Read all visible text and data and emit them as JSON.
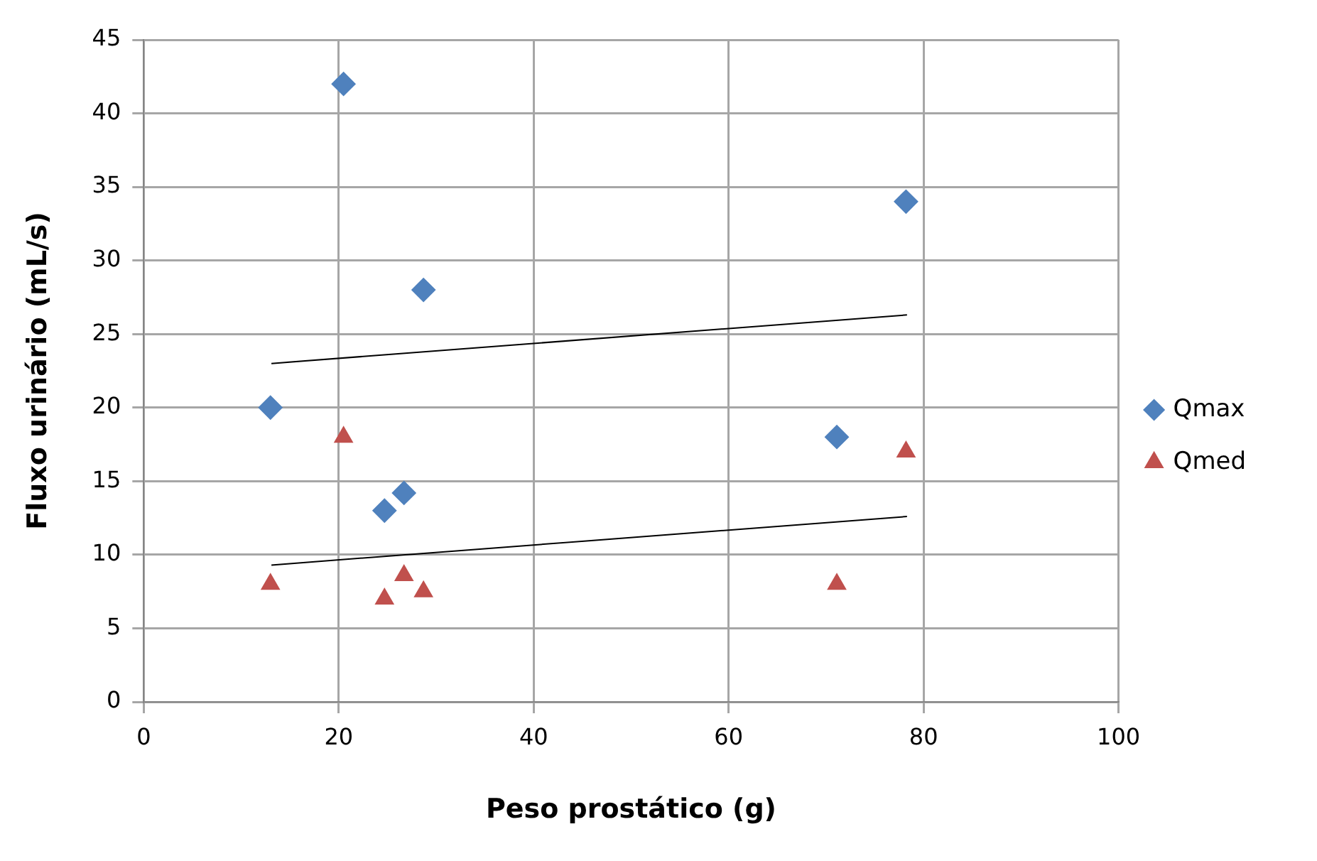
{
  "chart_data": {
    "type": "scatter",
    "xlabel": "Peso prostático (g)",
    "ylabel": "Fluxo urinário (mL/s)",
    "xlim": [
      0,
      100
    ],
    "xticks": [
      0,
      20,
      40,
      60,
      80,
      100
    ],
    "ylim": [
      0,
      45
    ],
    "yticks": [
      0,
      5,
      10,
      15,
      20,
      25,
      30,
      35,
      40,
      45
    ],
    "grid": true,
    "legend": "right",
    "series": [
      {
        "name": "Qmax",
        "color": "#4f81bd",
        "marker": "diamond",
        "x": [
          20.5,
          78.2,
          28.7,
          13.0,
          71.1,
          24.7,
          26.7
        ],
        "values": [
          42,
          34,
          28,
          20,
          18,
          13,
          14.2
        ]
      },
      {
        "name": "Qmed",
        "color": "#c0504d",
        "marker": "triangle",
        "x": [
          20.5,
          78.2,
          28.7,
          13.0,
          71.1,
          24.7,
          26.7
        ],
        "values": [
          18,
          17,
          7.5,
          8,
          8,
          7,
          8.6
        ]
      },
      {
        "type": "line",
        "color": "#000000",
        "marker": "none",
        "line_style": "solid",
        "x": [
          13.1,
          78.3
        ],
        "values": [
          23.0,
          26.3
        ]
      },
      {
        "type": "line",
        "color": "#000000",
        "marker": "none",
        "line_style": "solid",
        "x": [
          13.1,
          78.3
        ],
        "values": [
          9.3,
          12.6
        ]
      }
    ]
  }
}
